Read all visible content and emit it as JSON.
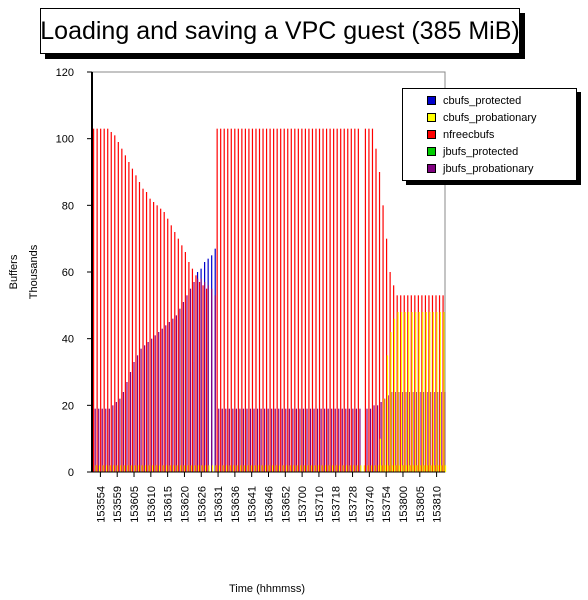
{
  "chart_data": {
    "type": "bar",
    "title": "Loading and saving a VPC guest (385 MiB)",
    "xlabel": "Time (hhmmss)",
    "ylabel": "Buffers",
    "ylabel2": "Thousands",
    "ylim": [
      0,
      120
    ],
    "yticks": [
      0,
      20,
      40,
      60,
      80,
      100,
      120
    ],
    "xtick_labels": [
      "153554",
      "153559",
      "153605",
      "153610",
      "153615",
      "153620",
      "153626",
      "153631",
      "153636",
      "153641",
      "153646",
      "153652",
      "153700",
      "153710",
      "153718",
      "153728",
      "153740",
      "153754",
      "153800",
      "153805",
      "153810"
    ],
    "legend_position": "top-right",
    "n_samples": 100,
    "series": [
      {
        "name": "cbufs_protected",
        "color": "#0000cc",
        "values": [
          0,
          0,
          0,
          0,
          0,
          0,
          0,
          0,
          0,
          0,
          0,
          0,
          0,
          0,
          0,
          0,
          0,
          0,
          0,
          0,
          0,
          0,
          0,
          0,
          0,
          0,
          0,
          0,
          0,
          0,
          0,
          0,
          0,
          0,
          0,
          0,
          0,
          0,
          0,
          0,
          0,
          0,
          0,
          0,
          0,
          0,
          0,
          0,
          0,
          0,
          0,
          0,
          0,
          0,
          0,
          0,
          0,
          0,
          0,
          0,
          0,
          0,
          0,
          0,
          0,
          0,
          0,
          0,
          0,
          0,
          0,
          0,
          0,
          0,
          0,
          0,
          0,
          0,
          0,
          0,
          0,
          0,
          0,
          0,
          0,
          0,
          0,
          0,
          0,
          0,
          0,
          0,
          0,
          0,
          0,
          0,
          0,
          0,
          0,
          0
        ]
      },
      {
        "name": "cbufs_probationary",
        "color": "#ffff00",
        "values": [
          2,
          2,
          2,
          2,
          2,
          2,
          2,
          2,
          2,
          2,
          2,
          2,
          2,
          2,
          2,
          2,
          2,
          2,
          2,
          2,
          2,
          2,
          2,
          2,
          2,
          2,
          2,
          2,
          2,
          2,
          2,
          2,
          2,
          2,
          2,
          2,
          2,
          2,
          2,
          2,
          2,
          2,
          2,
          2,
          2,
          2,
          2,
          2,
          2,
          2,
          2,
          2,
          2,
          2,
          2,
          2,
          2,
          2,
          2,
          2,
          2,
          2,
          2,
          2,
          2,
          2,
          2,
          2,
          2,
          2,
          2,
          2,
          2,
          2,
          2,
          2,
          2,
          2,
          2,
          2,
          2,
          2,
          2,
          2,
          2,
          2,
          2,
          2,
          2,
          2,
          2,
          2,
          2,
          2,
          2,
          2,
          2,
          2,
          2,
          2
        ]
      },
      {
        "name": "nfreecbufs",
        "color": "#ff0000",
        "values": [
          103,
          103,
          103,
          103,
          103,
          102,
          101,
          99,
          97,
          95,
          93,
          91,
          89,
          87,
          85,
          84,
          82,
          81,
          80,
          79,
          78,
          76,
          74,
          72,
          70,
          68,
          66,
          63,
          61,
          59,
          57,
          56,
          55,
          0,
          0,
          103,
          103,
          103,
          103,
          103,
          103,
          103,
          103,
          103,
          103,
          103,
          103,
          103,
          103,
          103,
          103,
          103,
          103,
          103,
          103,
          103,
          103,
          103,
          103,
          103,
          103,
          103,
          103,
          103,
          103,
          103,
          103,
          103,
          103,
          103,
          103,
          103,
          103,
          103,
          103,
          103,
          0,
          103,
          103,
          103,
          97,
          90,
          80,
          70,
          60,
          56,
          53,
          53,
          53,
          53,
          53,
          53,
          53,
          53,
          53,
          53,
          53,
          53,
          53,
          53
        ]
      },
      {
        "name": "jbufs_protected",
        "color": "#00cc00",
        "values": [
          0,
          0,
          0,
          0,
          0,
          0,
          0,
          0,
          0,
          0,
          0,
          0,
          0,
          0,
          0,
          0,
          0,
          0,
          0,
          0,
          0,
          0,
          0,
          0,
          0,
          0,
          0,
          0,
          0,
          0,
          0,
          0,
          0,
          0,
          0,
          0,
          0,
          0,
          0,
          0,
          0,
          0,
          0,
          0,
          0,
          0,
          0,
          0,
          0,
          0,
          0,
          0,
          0,
          0,
          0,
          0,
          0,
          0,
          0,
          0,
          0,
          0,
          0,
          0,
          0,
          0,
          0,
          0,
          0,
          0,
          0,
          0,
          0,
          0,
          0,
          0,
          0,
          0,
          0,
          0,
          0,
          0,
          0,
          0,
          0,
          0,
          0,
          0,
          0,
          0,
          0,
          0,
          0,
          0,
          0,
          0,
          0,
          0,
          0,
          0
        ]
      },
      {
        "name": "jbufs_probationary",
        "color": "#800080",
        "values": [
          19,
          19,
          19,
          19,
          19,
          20,
          21,
          22,
          24,
          27,
          30,
          33,
          35,
          37,
          38,
          39,
          40,
          41,
          42,
          43,
          44,
          45,
          46,
          47,
          49,
          51,
          53,
          55,
          57,
          58,
          58,
          57,
          56,
          55,
          53,
          19,
          19,
          19,
          19,
          19,
          19,
          19,
          19,
          19,
          19,
          19,
          19,
          19,
          19,
          19,
          19,
          19,
          19,
          19,
          19,
          19,
          19,
          19,
          19,
          19,
          19,
          19,
          19,
          19,
          19,
          19,
          19,
          19,
          19,
          19,
          19,
          19,
          19,
          19,
          19,
          19,
          0,
          19,
          19,
          20,
          20,
          21,
          22,
          23,
          24,
          24,
          24,
          24,
          24,
          24,
          24,
          24,
          24,
          24,
          24,
          24,
          24,
          24,
          24,
          24
        ]
      }
    ],
    "cbufs_protected_overlay": [
      0,
      0,
      0,
      0,
      0,
      0,
      0,
      0,
      0,
      0,
      0,
      0,
      0,
      0,
      0,
      0,
      0,
      0,
      0,
      0,
      0,
      0,
      0,
      0,
      0,
      0,
      0,
      0,
      0,
      60,
      61,
      63,
      64,
      65,
      67,
      0,
      0,
      0,
      0,
      0,
      0,
      0,
      0,
      0,
      0,
      0,
      0,
      0,
      0,
      0,
      0,
      0,
      0,
      0,
      0,
      0,
      0,
      0,
      0,
      0,
      0,
      0,
      0,
      0,
      0,
      0,
      0,
      0,
      0,
      0,
      0,
      0,
      0,
      0,
      0,
      0,
      0,
      0,
      0,
      0,
      0,
      0,
      0,
      0,
      0,
      0,
      0,
      0,
      0,
      0,
      0,
      0,
      0,
      0,
      0,
      0,
      0,
      0,
      0,
      0
    ],
    "cbufs_probationary_overlay": [
      0,
      0,
      0,
      0,
      0,
      0,
      0,
      0,
      0,
      0,
      0,
      0,
      0,
      0,
      0,
      0,
      0,
      0,
      0,
      0,
      0,
      0,
      0,
      0,
      0,
      0,
      0,
      0,
      0,
      0,
      0,
      0,
      0,
      0,
      0,
      0,
      0,
      0,
      0,
      0,
      0,
      0,
      0,
      0,
      0,
      0,
      0,
      0,
      0,
      0,
      0,
      0,
      0,
      0,
      0,
      0,
      0,
      0,
      0,
      0,
      0,
      0,
      0,
      0,
      0,
      0,
      0,
      0,
      0,
      0,
      0,
      0,
      0,
      0,
      0,
      0,
      0,
      0,
      0,
      0,
      0,
      10,
      22,
      35,
      42,
      46,
      48,
      48,
      48,
      48,
      48,
      48,
      48,
      48,
      48,
      48,
      48,
      48,
      48,
      48
    ]
  }
}
